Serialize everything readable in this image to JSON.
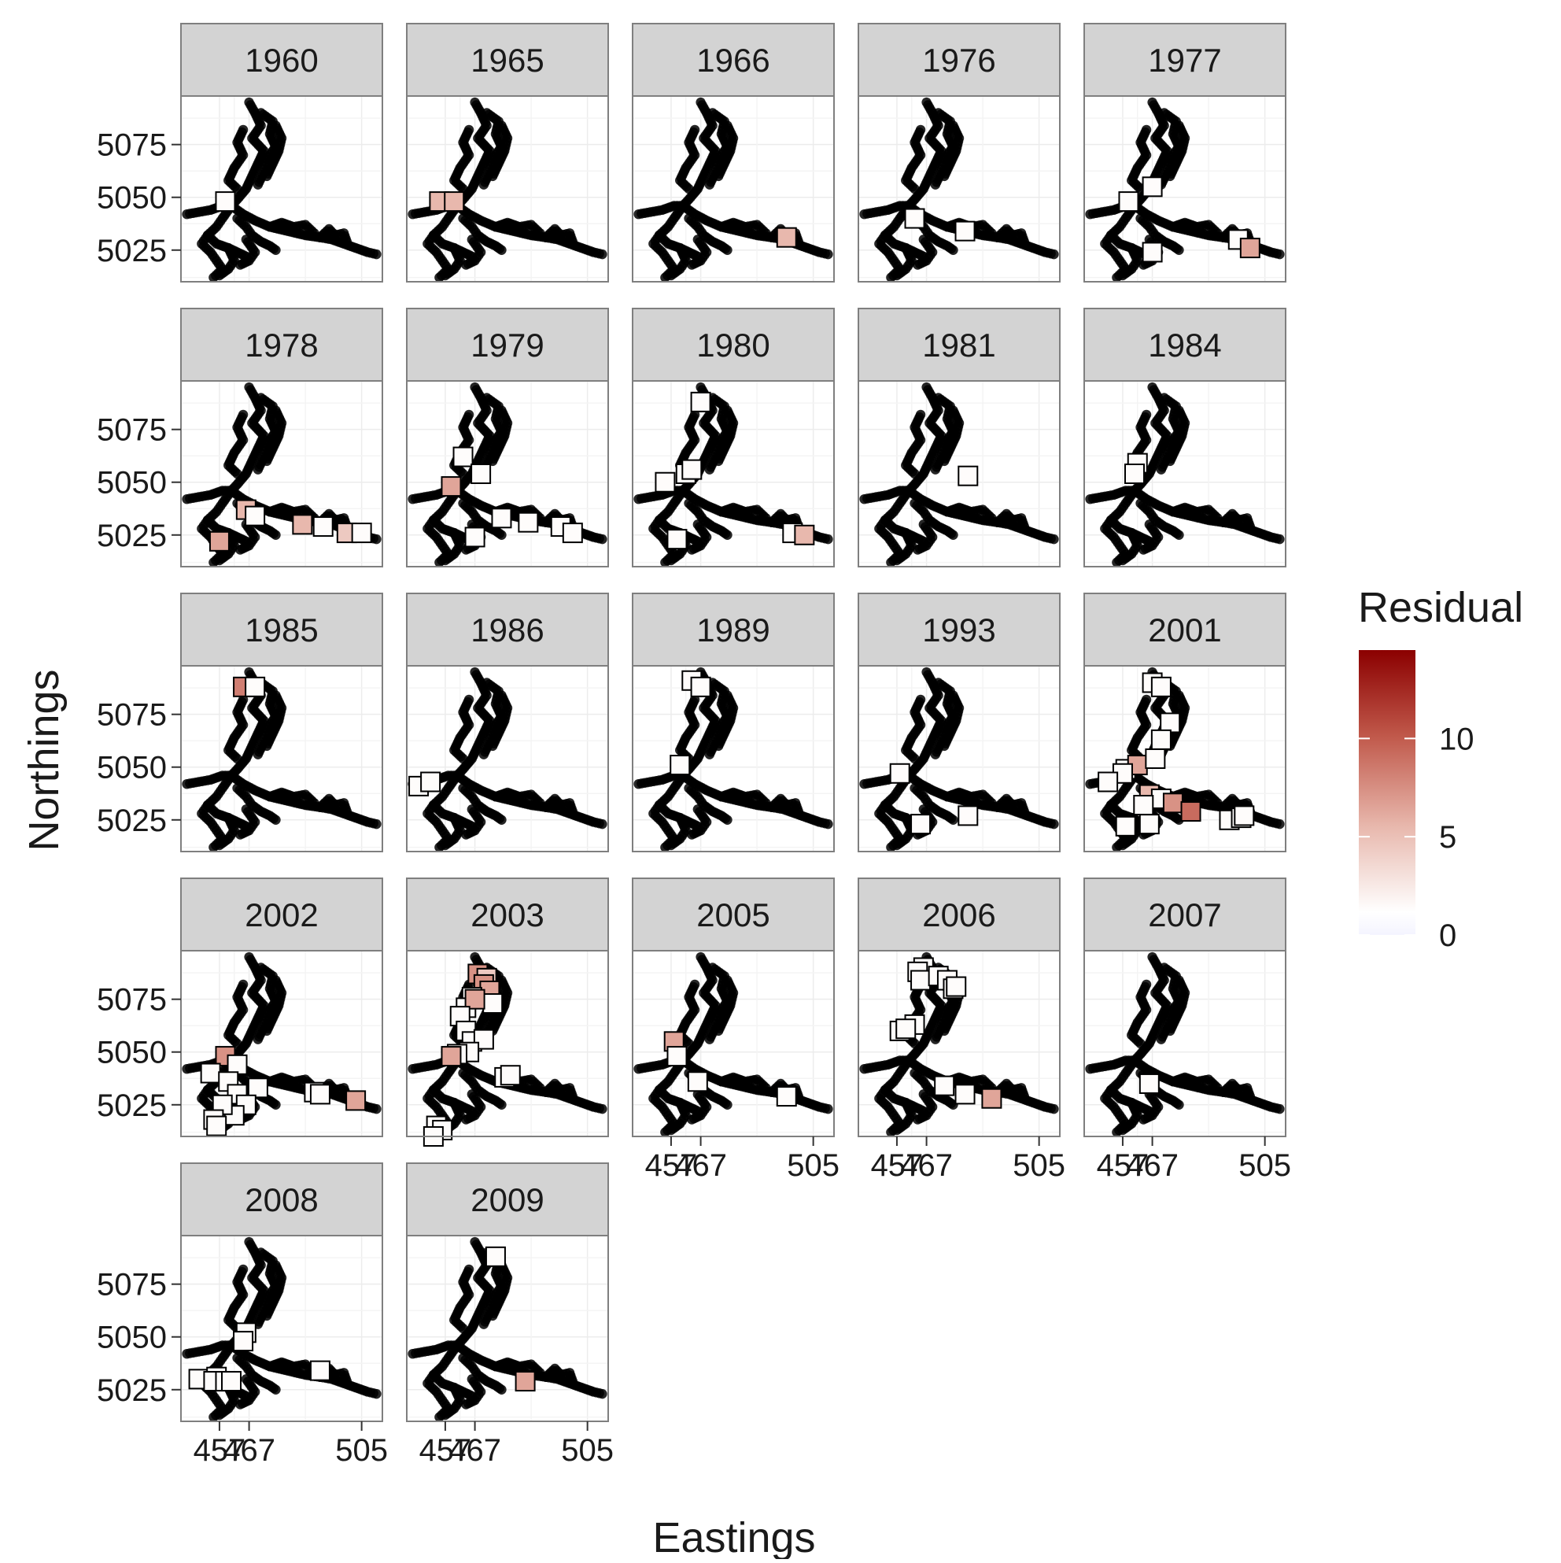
{
  "chart_data": {
    "type": "scatter",
    "subtype": "faceted-map",
    "xlabel": "Eastings",
    "ylabel": "Northings",
    "x_ticks": [
      457,
      467,
      505
    ],
    "x_tick_labels": [
      "457",
      "467",
      "505"
    ],
    "y_ticks": [
      5025,
      5050,
      5075
    ],
    "y_tick_labels": [
      "5025",
      "5050",
      "5075"
    ],
    "xlim": [
      444,
      512
    ],
    "ylim": [
      5010,
      5098
    ],
    "grid": true,
    "legend": {
      "title": "Residual",
      "placement": "right",
      "scale": "continuous",
      "range": [
        0,
        14.5
      ],
      "ticks": [
        0,
        5,
        10
      ],
      "tick_labels": [
        "0",
        "5",
        "10"
      ],
      "low_color": "#f5f5ff",
      "mid_color": "#ffffff",
      "high_color": "#8b0000"
    },
    "colors": {
      "panel_strip": "#d3d3d3",
      "panel_border": "#7f7f7f",
      "grid": "#ececec",
      "outline_points": "#000000"
    },
    "facets": [
      {
        "label": "1960",
        "points": [
          [
            459,
            5048,
            1
          ]
        ]
      },
      {
        "label": "1965",
        "points": [
          [
            455,
            5048,
            5
          ],
          [
            460,
            5048,
            5
          ]
        ]
      },
      {
        "label": "1966",
        "points": [
          [
            496,
            5031,
            5
          ]
        ]
      },
      {
        "label": "1976",
        "points": [
          [
            463,
            5040,
            1
          ],
          [
            480,
            5034,
            1
          ]
        ]
      },
      {
        "label": "1977",
        "points": [
          [
            459,
            5048,
            1
          ],
          [
            467,
            5055,
            1
          ],
          [
            467,
            5024,
            1
          ],
          [
            496,
            5030,
            1
          ],
          [
            500,
            5026,
            6
          ]
        ]
      },
      {
        "label": "1978",
        "points": [
          [
            457,
            5022,
            6
          ],
          [
            466,
            5037,
            5
          ],
          [
            469,
            5034,
            1
          ],
          [
            485,
            5030,
            5
          ],
          [
            492,
            5029,
            1
          ],
          [
            500,
            5026,
            4
          ],
          [
            505,
            5026,
            1
          ]
        ]
      },
      {
        "label": "1979",
        "points": [
          [
            459,
            5048,
            6
          ],
          [
            463,
            5062,
            1
          ],
          [
            469,
            5054,
            1
          ],
          [
            467,
            5024,
            1
          ],
          [
            476,
            5033,
            1
          ],
          [
            485,
            5031,
            1
          ],
          [
            496,
            5029,
            1
          ],
          [
            500,
            5026,
            1
          ]
        ]
      },
      {
        "label": "1980",
        "points": [
          [
            467,
            5088,
            1
          ],
          [
            455,
            5050,
            1
          ],
          [
            462,
            5054,
            1
          ],
          [
            464,
            5056,
            1
          ],
          [
            459,
            5023,
            1
          ],
          [
            498,
            5026,
            1
          ],
          [
            502,
            5025,
            5
          ]
        ]
      },
      {
        "label": "1981",
        "points": [
          [
            481,
            5053,
            1
          ]
        ]
      },
      {
        "label": "1984",
        "points": [
          [
            462,
            5059,
            1
          ],
          [
            461,
            5054,
            1
          ]
        ]
      },
      {
        "label": "1985",
        "points": [
          [
            465,
            5088,
            8
          ],
          [
            469,
            5088,
            1
          ]
        ]
      },
      {
        "label": "1986",
        "points": [
          [
            448,
            5041,
            1
          ],
          [
            452,
            5043,
            1
          ]
        ]
      },
      {
        "label": "1989",
        "points": [
          [
            464,
            5091,
            1
          ],
          [
            467,
            5088,
            1
          ],
          [
            460,
            5051,
            1
          ]
        ]
      },
      {
        "label": "1993",
        "points": [
          [
            458,
            5047,
            1
          ],
          [
            465,
            5023,
            1
          ],
          [
            481,
            5027,
            1
          ]
        ]
      },
      {
        "label": "2001",
        "points": [
          [
            467,
            5090,
            1
          ],
          [
            470,
            5088,
            1
          ],
          [
            473,
            5071,
            1
          ],
          [
            470,
            5063,
            1
          ],
          [
            458,
            5049,
            1
          ],
          [
            462,
            5051,
            6
          ],
          [
            457,
            5047,
            1
          ],
          [
            452,
            5043,
            1
          ],
          [
            468,
            5054,
            1
          ],
          [
            466,
            5037,
            5
          ],
          [
            470,
            5035,
            1
          ],
          [
            464,
            5032,
            1
          ],
          [
            474,
            5033,
            7
          ],
          [
            458,
            5022,
            1
          ],
          [
            466,
            5023,
            1
          ],
          [
            480,
            5029,
            9
          ],
          [
            493,
            5025,
            1
          ],
          [
            497,
            5026,
            1
          ],
          [
            498,
            5027,
            1
          ]
        ]
      },
      {
        "label": "2002",
        "points": [
          [
            459,
            5048,
            7
          ],
          [
            454,
            5040,
            1
          ],
          [
            463,
            5044,
            1
          ],
          [
            460,
            5036,
            1
          ],
          [
            463,
            5030,
            1
          ],
          [
            470,
            5033,
            1
          ],
          [
            466,
            5025,
            1
          ],
          [
            462,
            5020,
            1
          ],
          [
            458,
            5025,
            1
          ],
          [
            455,
            5018,
            1
          ],
          [
            456,
            5015,
            1
          ],
          [
            489,
            5031,
            1
          ],
          [
            491,
            5030,
            1
          ],
          [
            503,
            5027,
            6
          ]
        ]
      },
      {
        "label": "2003",
        "points": [
          [
            468,
            5087,
            7
          ],
          [
            471,
            5085,
            4
          ],
          [
            470,
            5082,
            7
          ],
          [
            472,
            5079,
            6
          ],
          [
            466,
            5076,
            1
          ],
          [
            464,
            5071,
            1
          ],
          [
            473,
            5073,
            1
          ],
          [
            467,
            5075,
            6
          ],
          [
            462,
            5067,
            1
          ],
          [
            464,
            5060,
            1
          ],
          [
            466,
            5055,
            1
          ],
          [
            470,
            5056,
            1
          ],
          [
            465,
            5050,
            1
          ],
          [
            461,
            5049,
            1
          ],
          [
            459,
            5048,
            6
          ],
          [
            477,
            5038,
            1
          ],
          [
            479,
            5039,
            1
          ],
          [
            454,
            5015,
            1
          ],
          [
            456,
            5013,
            1
          ],
          [
            453,
            5010,
            1
          ]
        ]
      },
      {
        "label": "2005",
        "points": [
          [
            458,
            5055,
            6
          ],
          [
            459,
            5048,
            1
          ],
          [
            466,
            5036,
            1
          ],
          [
            496,
            5029,
            1
          ]
        ]
      },
      {
        "label": "2006",
        "points": [
          [
            466,
            5090,
            1
          ],
          [
            464,
            5088,
            1
          ],
          [
            465,
            5084,
            1
          ],
          [
            471,
            5086,
            1
          ],
          [
            474,
            5084,
            1
          ],
          [
            476,
            5080,
            1
          ],
          [
            477,
            5081,
            1
          ],
          [
            463,
            5063,
            1
          ],
          [
            458,
            5060,
            1
          ],
          [
            460,
            5061,
            1
          ],
          [
            473,
            5034,
            1
          ],
          [
            480,
            5030,
            1
          ],
          [
            489,
            5028,
            6
          ]
        ]
      },
      {
        "label": "2007",
        "points": [
          [
            466,
            5035,
            1
          ]
        ]
      },
      {
        "label": "2008",
        "points": [
          [
            450,
            5030,
            1
          ],
          [
            456,
            5031,
            1
          ],
          [
            455,
            5029,
            1
          ],
          [
            459,
            5029,
            1
          ],
          [
            461,
            5029,
            1
          ],
          [
            466,
            5052,
            1
          ],
          [
            465,
            5048,
            1
          ],
          [
            491,
            5034,
            1
          ]
        ]
      },
      {
        "label": "2009",
        "points": [
          [
            474,
            5088,
            1
          ],
          [
            484,
            5029,
            6
          ]
        ]
      }
    ]
  }
}
